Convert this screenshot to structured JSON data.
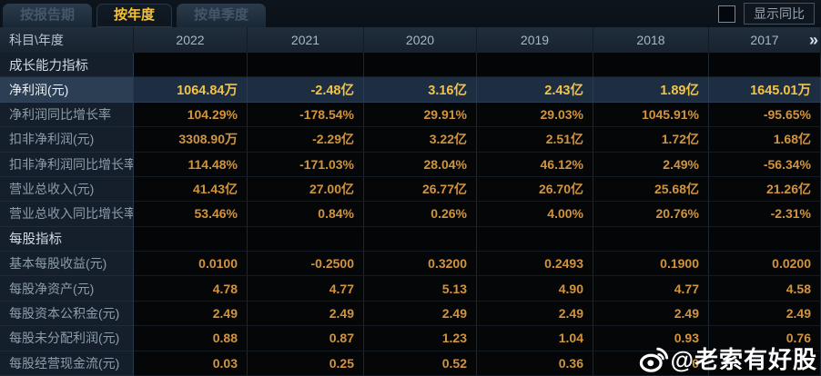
{
  "tabs": [
    {
      "label": "按报告期",
      "active": false
    },
    {
      "label": "按年度",
      "active": true
    },
    {
      "label": "按单季度",
      "active": false
    }
  ],
  "controls": {
    "show_yoy_label": "显示同比",
    "checkbox_checked": false
  },
  "table": {
    "corner_label": "科目\\年度",
    "years": [
      "2022",
      "2021",
      "2020",
      "2019",
      "2018",
      "2017"
    ],
    "more_icon": "»",
    "rows": [
      {
        "type": "section",
        "label": "成长能力指标",
        "values": [
          "",
          "",
          "",
          "",
          "",
          ""
        ]
      },
      {
        "type": "highlight",
        "label": "净利润(元)",
        "values": [
          "1064.84万",
          "-2.48亿",
          "3.16亿",
          "2.43亿",
          "1.89亿",
          "1645.01万"
        ]
      },
      {
        "type": "data",
        "label": "净利润同比增长率",
        "values": [
          "104.29%",
          "-178.54%",
          "29.91%",
          "29.03%",
          "1045.91%",
          "-95.65%"
        ]
      },
      {
        "type": "data",
        "label": "扣非净利润(元)",
        "values": [
          "3308.90万",
          "-2.29亿",
          "3.22亿",
          "2.51亿",
          "1.72亿",
          "1.68亿"
        ]
      },
      {
        "type": "data",
        "label": "扣非净利润同比增长率",
        "values": [
          "114.48%",
          "-171.03%",
          "28.04%",
          "46.12%",
          "2.49%",
          "-56.34%"
        ]
      },
      {
        "type": "data",
        "label": "营业总收入(元)",
        "values": [
          "41.43亿",
          "27.00亿",
          "26.77亿",
          "26.70亿",
          "25.68亿",
          "21.26亿"
        ]
      },
      {
        "type": "data",
        "label": "营业总收入同比增长率",
        "values": [
          "53.46%",
          "0.84%",
          "0.26%",
          "4.00%",
          "20.76%",
          "-2.31%"
        ]
      },
      {
        "type": "section",
        "label": "每股指标",
        "values": [
          "",
          "",
          "",
          "",
          "",
          ""
        ]
      },
      {
        "type": "data",
        "label": "基本每股收益(元)",
        "values": [
          "0.0100",
          "-0.2500",
          "0.3200",
          "0.2493",
          "0.1900",
          "0.0200"
        ]
      },
      {
        "type": "data",
        "label": "每股净资产(元)",
        "values": [
          "4.78",
          "4.77",
          "5.13",
          "4.90",
          "4.77",
          "4.58"
        ]
      },
      {
        "type": "data",
        "label": "每股资本公积金(元)",
        "values": [
          "2.49",
          "2.49",
          "2.49",
          "2.49",
          "2.49",
          "2.49"
        ]
      },
      {
        "type": "data",
        "label": "每股未分配利润(元)",
        "values": [
          "0.88",
          "0.87",
          "1.23",
          "1.04",
          "0.93",
          "0.76"
        ]
      },
      {
        "type": "data",
        "label": "每股经营现金流(元)",
        "values": [
          "0.03",
          "0.25",
          "0.52",
          "0.36",
          "0",
          ""
        ]
      }
    ]
  },
  "watermark": {
    "handle": "@老索有好股",
    "icon": "weibo-icon"
  },
  "colors": {
    "gold_active_tab": "#f2c23a",
    "gold_highlight_value": "#f3c247",
    "orange_value": "#d2943c",
    "highlight_row_bg": "#1d2e42",
    "label_col_bg": "#151f2b",
    "header_row_bg": "#1c2835",
    "page_bg": "#0b1118"
  }
}
